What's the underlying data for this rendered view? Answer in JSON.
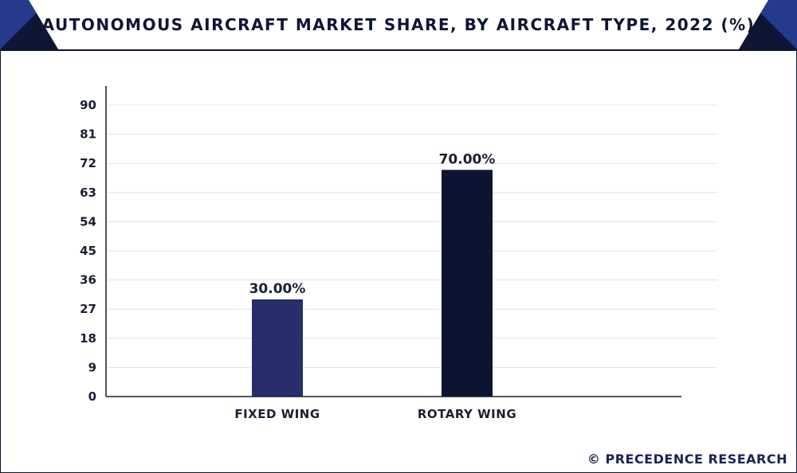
{
  "chart_data": {
    "type": "bar",
    "title": "AUTONOMOUS AIRCRAFT MARKET SHARE, BY AIRCRAFT TYPE, 2022 (%)",
    "categories": [
      "FIXED WING",
      "ROTARY WING"
    ],
    "values": [
      30.0,
      70.0
    ],
    "data_labels": [
      "30.00%",
      "70.00%"
    ],
    "bar_colors": [
      "#262f6b",
      "#0d1433"
    ],
    "xlabel": "",
    "ylabel": "",
    "ylim": [
      0,
      90
    ],
    "yticks": [
      0,
      9,
      18,
      27,
      36,
      45,
      54,
      63,
      72,
      81,
      90
    ],
    "grid": true,
    "legend": "none"
  },
  "footer": {
    "credit": "© PRECEDENCE RESEARCH"
  },
  "colors": {
    "navy": "#0f1535",
    "accent_blue": "#243a8c",
    "grid": "#e3e3e3"
  }
}
